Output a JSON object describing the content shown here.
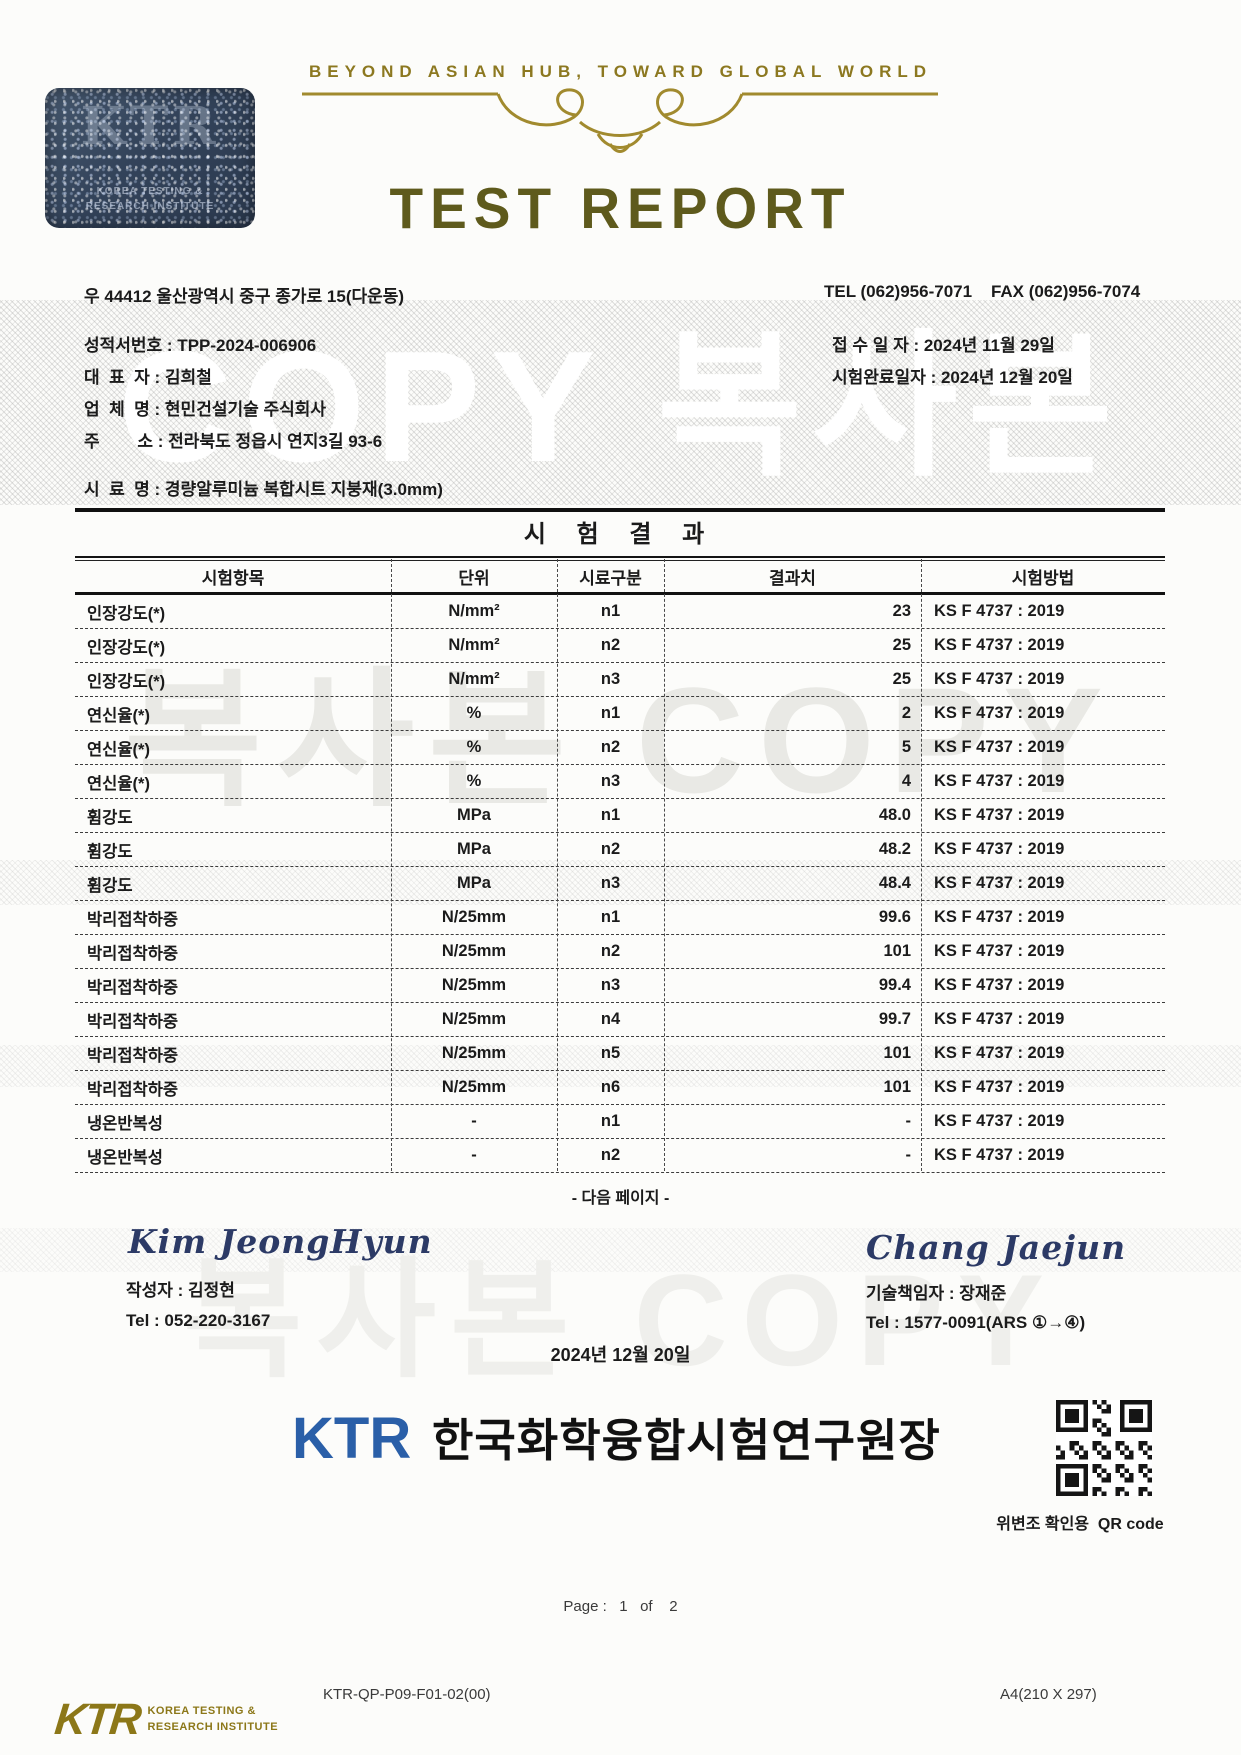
{
  "header": {
    "tagline": "BEYOND ASIAN HUB, TOWARD GLOBAL WORLD",
    "title": "TEST REPORT",
    "sticker_big": "KTR",
    "sticker_small": "KOREA TESTING &\nRESEARCH INSTITUTE"
  },
  "contact": {
    "address": "우 44412 울산광역시 중구 종가로 15(다운동)",
    "tel_fax": "TEL (062)956-7071    FAX (062)956-7074"
  },
  "info": {
    "report_no": "성적서번호 : TPP-2024-006906",
    "ceo": "대  표  자 : 김희철",
    "company": "업  체  명 : 현민건설기술 주식회사",
    "address": "주        소 : 전라북도 정읍시 연지3길 93-6",
    "sample": "시  료  명 : 경량알루미늄 복합시트 지붕재(3.0mm)",
    "receipt_date": "접 수 일 자 : 2024년 11월 29일",
    "complete_date": "시험완료일자 : 2024년 12월 20일"
  },
  "results": {
    "title": "시 험 결 과",
    "columns": [
      "시험항목",
      "단위",
      "시료구분",
      "결과치",
      "시험방법"
    ],
    "rows": [
      [
        "인장강도(*)",
        "N/mm²",
        "n1",
        "23",
        "KS F 4737 : 2019"
      ],
      [
        "인장강도(*)",
        "N/mm²",
        "n2",
        "25",
        "KS F 4737 : 2019"
      ],
      [
        "인장강도(*)",
        "N/mm²",
        "n3",
        "25",
        "KS F 4737 : 2019"
      ],
      [
        "연신율(*)",
        "%",
        "n1",
        "2",
        "KS F 4737 : 2019"
      ],
      [
        "연신율(*)",
        "%",
        "n2",
        "5",
        "KS F 4737 : 2019"
      ],
      [
        "연신율(*)",
        "%",
        "n3",
        "4",
        "KS F 4737 : 2019"
      ],
      [
        "휨강도",
        "MPa",
        "n1",
        "48.0",
        "KS F 4737 : 2019"
      ],
      [
        "휨강도",
        "MPa",
        "n2",
        "48.2",
        "KS F 4737 : 2019"
      ],
      [
        "휨강도",
        "MPa",
        "n3",
        "48.4",
        "KS F 4737 : 2019"
      ],
      [
        "박리접착하중",
        "N/25mm",
        "n1",
        "99.6",
        "KS F 4737 : 2019"
      ],
      [
        "박리접착하중",
        "N/25mm",
        "n2",
        "101",
        "KS F 4737 : 2019"
      ],
      [
        "박리접착하중",
        "N/25mm",
        "n3",
        "99.4",
        "KS F 4737 : 2019"
      ],
      [
        "박리접착하중",
        "N/25mm",
        "n4",
        "99.7",
        "KS F 4737 : 2019"
      ],
      [
        "박리접착하중",
        "N/25mm",
        "n5",
        "101",
        "KS F 4737 : 2019"
      ],
      [
        "박리접착하중",
        "N/25mm",
        "n6",
        "101",
        "KS F 4737 : 2019"
      ],
      [
        "냉온반복성",
        "-",
        "n1",
        "-",
        "KS F 4737 : 2019"
      ],
      [
        "냉온반복성",
        "-",
        "n2",
        "-",
        "KS F 4737 : 2019"
      ]
    ],
    "next_page": "- 다음 페이지 -"
  },
  "signatures": {
    "left_script": "Kim JeongHyun",
    "left_role": "작성자 : 김정현",
    "left_tel": "Tel : 052-220-3167",
    "right_script": "Chang Jaejun",
    "right_role": "기술책임자 : 장재준",
    "right_tel": "Tel : 1577-0091(ARS ①→④)",
    "date": "2024년 12월 20일"
  },
  "seal": {
    "ktr": "KTR",
    "org": "한국화학융합시험연구원장",
    "qr_caption": "위변조 확인용  QR code"
  },
  "footer": {
    "page": "Page :   1   of    2",
    "doc_no": "KTR-QP-P09-F01-02(00)",
    "paper": "A4(210 X 297)",
    "logo_text": "KTR",
    "logo_sub": "KOREA TESTING &\nRESEARCH INSTITUTE"
  },
  "watermark": {
    "band_text": "COPY 복사본",
    "mid_text": "복사본 COPY",
    "bottom_text": "복사본 COPY"
  },
  "colors": {
    "gold": "#8c7820",
    "title_gold": "#5e5a1c",
    "ktr_blue": "#2a5fa8",
    "signature_navy": "#2c3a66"
  }
}
